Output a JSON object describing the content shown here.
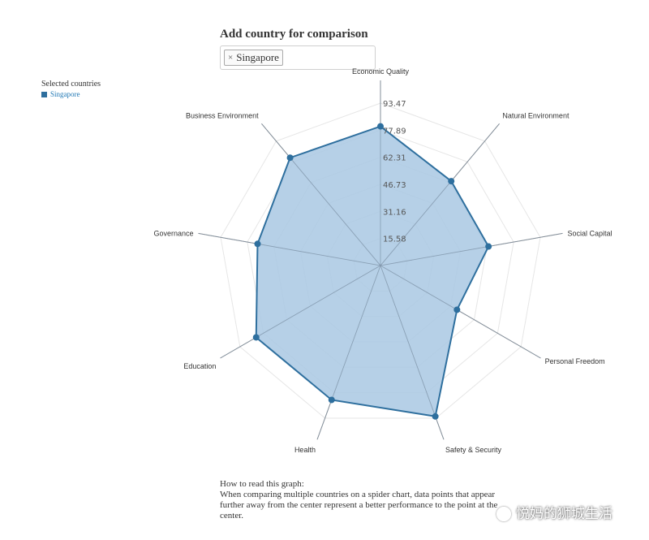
{
  "header": {
    "title": "Add country for comparison"
  },
  "country_select": {
    "tags": [
      {
        "remove_symbol": "×",
        "label": "Singapore"
      }
    ]
  },
  "legend": {
    "title": "Selected countries",
    "items": [
      {
        "label": "Singapore",
        "color": "#2e6f9e"
      }
    ]
  },
  "chart_data": {
    "type": "radar",
    "axes": [
      "Economic Quality",
      "Natural Environment",
      "Social Capital",
      "Personal Freedom",
      "Safety & Security",
      "Health",
      "Education",
      "Governance",
      "Business Environment"
    ],
    "ticks": [
      "15.58",
      "31.16",
      "46.73",
      "62.31",
      "77.89",
      "93.47"
    ],
    "max": 93.47,
    "grid": true,
    "series": [
      {
        "name": "Singapore",
        "values": [
          80.1,
          63.4,
          63.2,
          50.9,
          92.4,
          82.3,
          82.7,
          71.9,
          81.0
        ],
        "color": "#2e6f9e",
        "fill": "#a9c8e3"
      }
    ]
  },
  "footer": {
    "heading": "How to read this graph:",
    "text": "When comparing multiple countries on a spider chart, data points that appear further away from the center represent a better performance to the point at the center."
  },
  "watermark": {
    "text": "悦妈的狮城生活"
  }
}
